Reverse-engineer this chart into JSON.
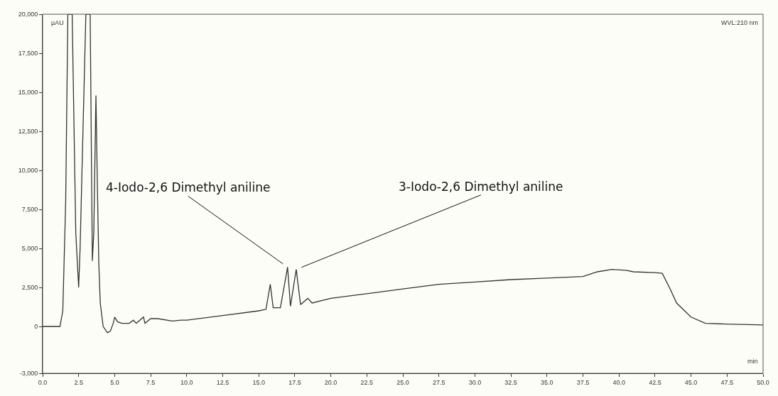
{
  "chart_data": {
    "type": "line",
    "xlabel": "min",
    "ylabel": "µAU",
    "x": [
      0,
      1.2,
      1.4,
      1.6,
      1.75,
      2.05,
      2.3,
      2.5,
      2.6,
      3.0,
      3.3,
      3.45,
      3.55,
      3.7,
      3.8,
      3.9,
      4.0,
      4.2,
      4.5,
      4.7,
      4.9,
      5.0,
      5.2,
      5.5,
      6.0,
      6.3,
      6.5,
      7.0,
      7.1,
      7.5,
      8.0,
      9.0,
      9.6,
      10.0,
      12.5,
      15.0,
      15.5,
      15.8,
      16.0,
      16.5,
      17.0,
      17.2,
      17.6,
      17.9,
      18.4,
      18.7,
      20.0,
      22.5,
      25.0,
      27.5,
      30.0,
      32.5,
      35.0,
      37.5,
      38.5,
      39.5,
      40.5,
      41.0,
      42.5,
      43.0,
      43.5,
      44.0,
      45.0,
      46.0,
      47.5,
      50.0
    ],
    "series": [
      {
        "color": "#333333",
        "values": [
          0,
          0,
          1000,
          8000,
          20000,
          20000,
          6000,
          2500,
          5000,
          20000,
          20000,
          4200,
          6000,
          14800,
          9000,
          4000,
          1500,
          0,
          -400,
          -300,
          200,
          600,
          300,
          200,
          200,
          400,
          200,
          600,
          200,
          500,
          500,
          350,
          400,
          400,
          700,
          1000,
          1100,
          2700,
          1200,
          1200,
          3800,
          1300,
          3650,
          1400,
          1800,
          1500,
          1800,
          2100,
          2400,
          2700,
          2850,
          3000,
          3100,
          3200,
          3500,
          3650,
          3600,
          3500,
          3450,
          3400,
          2500,
          1500,
          600,
          200,
          150,
          100
        ]
      }
    ],
    "xlim": [
      0,
      50
    ],
    "xticks": [
      {
        "value": 0,
        "label": "0.0"
      },
      2.5,
      {
        "value": 5,
        "label": "5.0"
      },
      7.5,
      {
        "value": 10,
        "label": "10.0"
      },
      12.5,
      {
        "value": 15,
        "label": "15.0"
      },
      17.5,
      {
        "value": 20,
        "label": "20.0"
      },
      22.5,
      {
        "value": 25,
        "label": "25.0"
      },
      27.5,
      {
        "value": 30,
        "label": "30.0"
      },
      32.5,
      {
        "value": 35,
        "label": "35.0"
      },
      37.5,
      {
        "value": 40,
        "label": "40.0"
      },
      42.5,
      {
        "value": 45,
        "label": "45.0"
      },
      47.5,
      {
        "value": 50,
        "label": "50.0"
      }
    ],
    "ylim": [
      -3000,
      20000
    ],
    "yticks": [
      {
        "value": -3000,
        "label": "-3,000"
      },
      0,
      {
        "value": 2500,
        "label": "2,500"
      },
      {
        "value": 5000,
        "label": "5,000"
      },
      {
        "value": 7500,
        "label": "7,500"
      },
      {
        "value": 10000,
        "label": "10,000"
      },
      {
        "value": 12500,
        "label": "12,500"
      },
      {
        "value": 15000,
        "label": "15,000"
      },
      {
        "value": 17500,
        "label": "17,500"
      },
      {
        "value": 20000,
        "label": "20,000"
      }
    ],
    "annotations": [
      {
        "text": "4-Iodo-2,6 Dimethyl aniline",
        "x": 17.0,
        "y": 3800
      },
      {
        "text": "3-Iodo-2,6 Dimethyl aniline",
        "x": 17.6,
        "y": 3650
      },
      "WVL:210 nm"
    ],
    "grid": false,
    "marker": "none",
    "line_style": "solid"
  }
}
